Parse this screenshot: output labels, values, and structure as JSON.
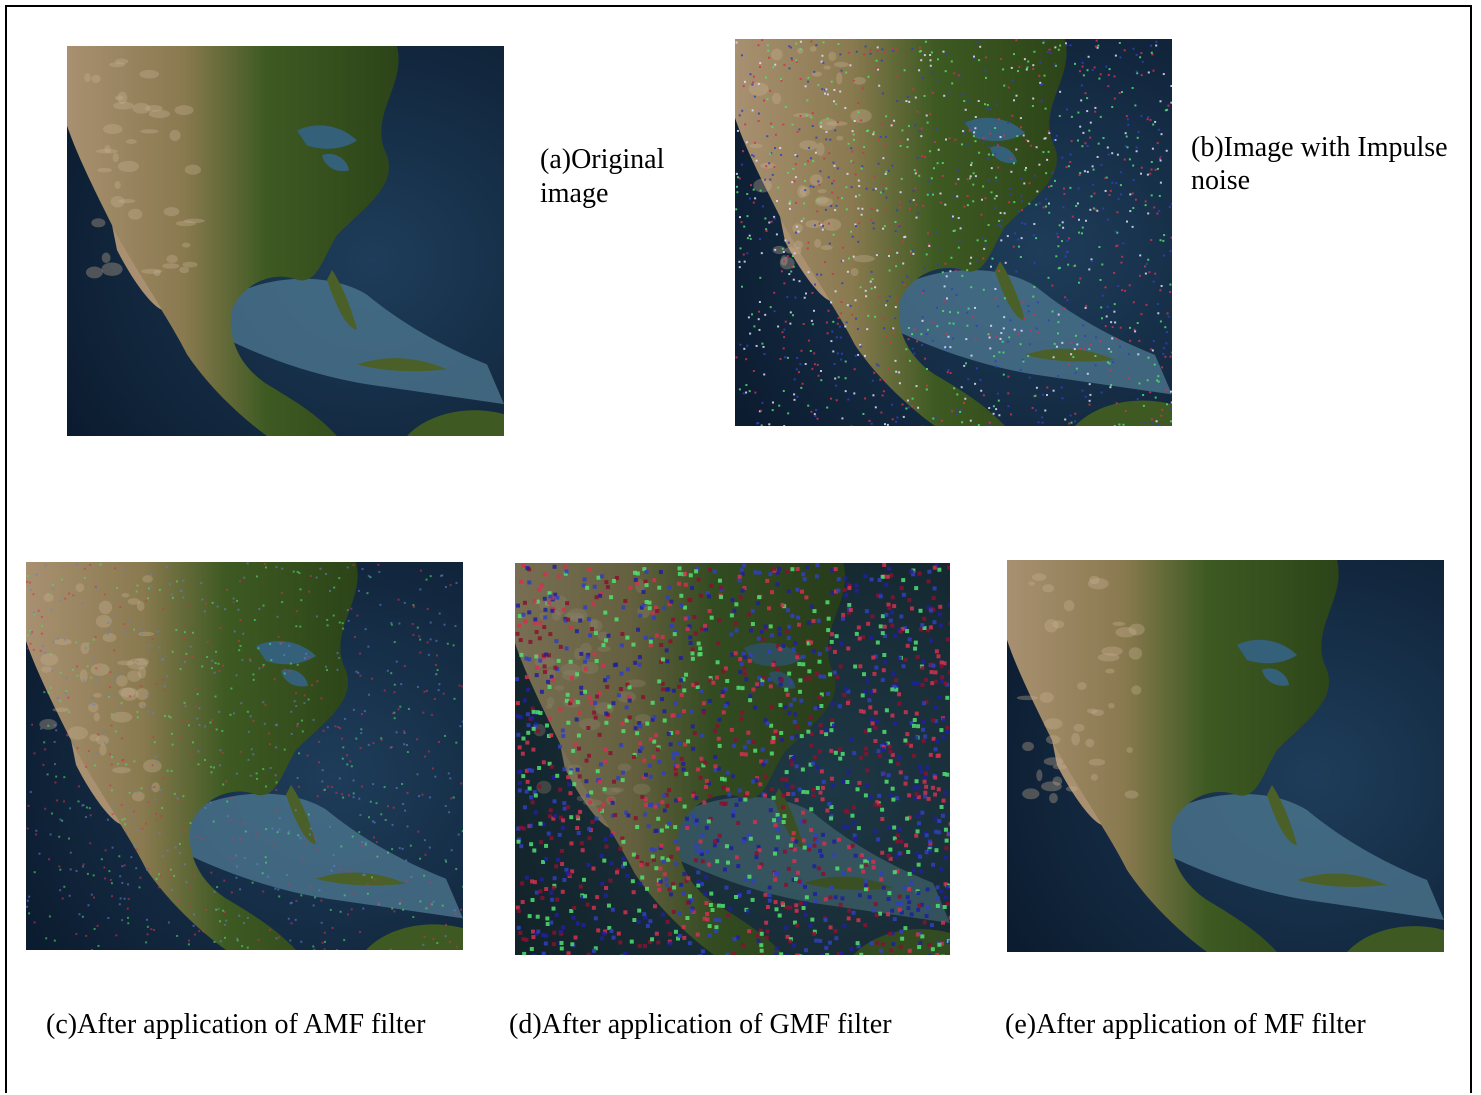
{
  "figures": [
    {
      "id": "a",
      "caption_lines": [
        "(a)Original",
        "image"
      ],
      "noise": "none"
    },
    {
      "id": "b",
      "caption_lines": [
        "(b)Image with Impulse",
        "noise"
      ],
      "noise": "impulse"
    },
    {
      "id": "c",
      "caption_lines": [
        "(c)After application of AMF filter"
      ],
      "noise": "residual"
    },
    {
      "id": "d",
      "caption_lines": [
        "(d)After application of GMF filter"
      ],
      "noise": "heavy"
    },
    {
      "id": "e",
      "caption_lines": [
        "(e)After application of  MF filter"
      ],
      "noise": "none"
    }
  ],
  "colors": {
    "ocean_deep": "#0c1c30",
    "ocean_shallow": "#4f7a92",
    "land_green": "#3e5a22",
    "land_desert": "#a89070",
    "noise_red": "#d43050",
    "noise_green": "#50e070",
    "noise_blue": "#3040c0"
  }
}
